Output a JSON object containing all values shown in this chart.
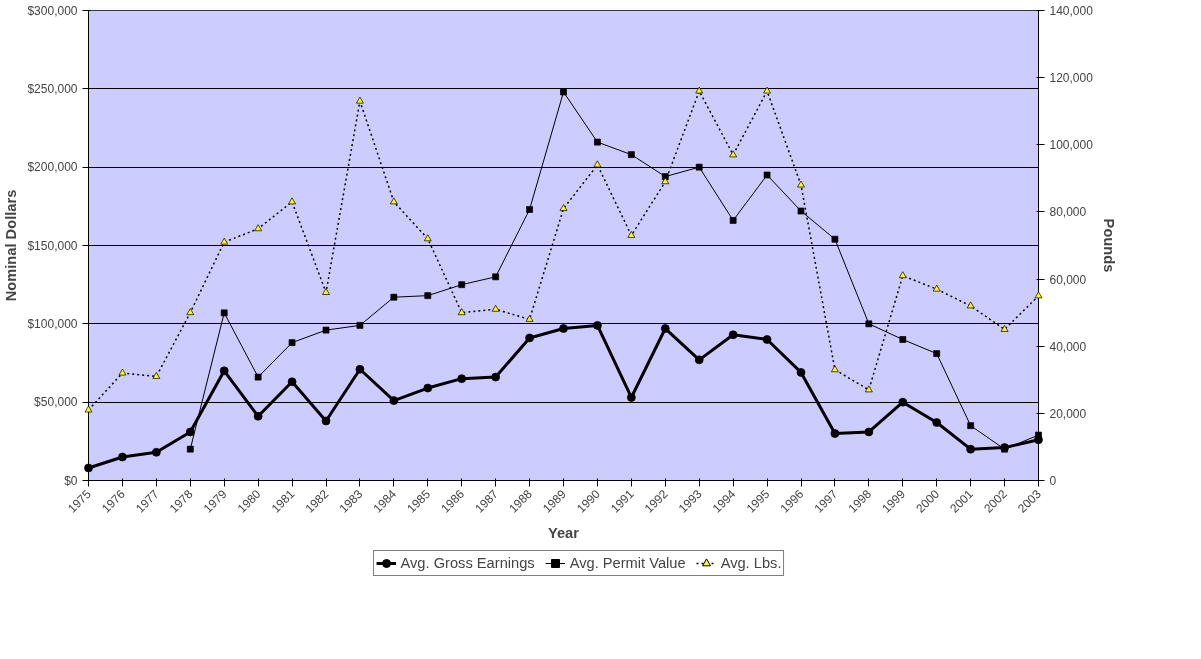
{
  "chart_data": {
    "type": "line",
    "xlabel": "Year",
    "ylabel": "Nominal Dollars",
    "y2label": "Pounds",
    "categories": [
      "1975",
      "1976",
      "1977",
      "1978",
      "1979",
      "1980",
      "1981",
      "1982",
      "1983",
      "1984",
      "1985",
      "1986",
      "1987",
      "1988",
      "1989",
      "1990",
      "1991",
      "1992",
      "1993",
      "1994",
      "1995",
      "1996",
      "1997",
      "1998",
      "1999",
      "2000",
      "2001",
      "2002",
      "2003"
    ],
    "series": [
      {
        "name": "Avg. Gross Earnings",
        "color": "#000000",
        "marker": "circle",
        "line_style": "solid",
        "values": [
          8000,
          15000,
          18000,
          31000,
          70000,
          41000,
          63000,
          38000,
          71000,
          51000,
          59000,
          65000,
          66000,
          91000,
          97000,
          99000,
          53000,
          97000,
          77000,
          93000,
          90000,
          69000,
          30000,
          31000,
          50000,
          37000,
          20000,
          21000,
          26000
        ]
      },
      {
        "name": "Avg. Permit Value",
        "color": "#000000",
        "marker": "square",
        "line_style": "solid",
        "values": [
          null,
          null,
          null,
          20000,
          107000,
          66000,
          88000,
          96000,
          99000,
          117000,
          118000,
          125000,
          130000,
          173000,
          248000,
          216000,
          208000,
          194000,
          200000,
          166000,
          195000,
          172000,
          154000,
          100000,
          90000,
          81000,
          35000,
          20000,
          29000
        ]
      },
      {
        "name": "Avg. Lbs.",
        "color": "#000000",
        "marker": "triangle",
        "line_style": "dotted",
        "axis": "y2",
        "values": [
          21000,
          32000,
          31000,
          50000,
          71000,
          75000,
          83000,
          56000,
          113000,
          83000,
          72000,
          50000,
          51000,
          48000,
          81000,
          94000,
          73000,
          89000,
          116000,
          97000,
          116000,
          88000,
          33000,
          27000,
          61000,
          57000,
          52000,
          45000,
          55000
        ]
      }
    ],
    "ylim": [
      0,
      300000
    ],
    "yticks": [
      {
        "value": 0,
        "label": "$0"
      },
      {
        "value": 50000,
        "label": "$50,000"
      },
      {
        "value": 100000,
        "label": "$100,000"
      },
      {
        "value": 150000,
        "label": "$150,000"
      },
      {
        "value": 200000,
        "label": "$200,000"
      },
      {
        "value": 250000,
        "label": "$250,000"
      },
      {
        "value": 300000,
        "label": "$300,000"
      }
    ],
    "y2lim": [
      0,
      140000
    ],
    "y2ticks": [
      {
        "value": 0,
        "label": "0"
      },
      {
        "value": 20000,
        "label": "20,000"
      },
      {
        "value": 40000,
        "label": "40,000"
      },
      {
        "value": 60000,
        "label": "60,000"
      },
      {
        "value": 80000,
        "label": "80,000"
      },
      {
        "value": 100000,
        "label": "100,000"
      },
      {
        "value": 120000,
        "label": "120,000"
      },
      {
        "value": 140000,
        "label": "140,000"
      }
    ],
    "grid": "y",
    "legend": "bottom"
  }
}
